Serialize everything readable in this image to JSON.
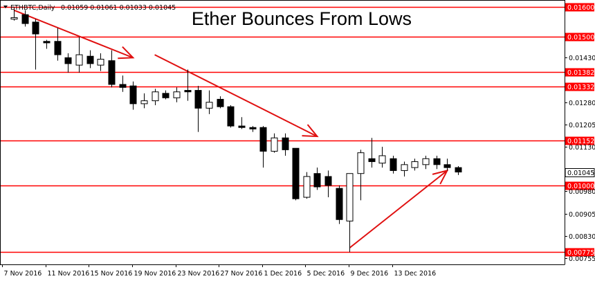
{
  "chart_data": {
    "type": "candlestick",
    "symbol_info": "ETHBTC,Daily",
    "ohlc_readout": "0.01059 0.01061 0.01033 0.01045",
    "title": "Ether Bounces From Lows",
    "colors": {
      "grid": "#ffffff",
      "level": "#ff0000",
      "arrow": "#e01010",
      "up": "#ffffff",
      "down": "#000000",
      "wick": "#000000"
    },
    "ylim": [
      0.00755,
      0.01615
    ],
    "y_ticks": [
      "0.01430",
      "0.01280",
      "0.01205",
      "0.01130",
      "0.00980",
      "0.00905",
      "0.00830",
      "0.00755"
    ],
    "x_tick_labels": [
      "7 Nov 2016",
      "11 Nov 2016",
      "15 Nov 2016",
      "19 Nov 2016",
      "23 Nov 2016",
      "27 Nov 2016",
      "1 Dec 2016",
      "5 Dec 2016",
      "9 Dec 2016",
      "13 Dec 2016"
    ],
    "levels": [
      "0.01600",
      "0.01500",
      "0.01382",
      "0.01332",
      "0.01152",
      "0.01000",
      "0.00775"
    ],
    "current_price": "0.01045",
    "candles": [
      {
        "o": 0.0156,
        "h": 0.016,
        "l": 0.01555,
        "c": 0.01565
      },
      {
        "o": 0.01575,
        "h": 0.0159,
        "l": 0.01535,
        "c": 0.01545
      },
      {
        "o": 0.0155,
        "h": 0.0156,
        "l": 0.0139,
        "c": 0.0151
      },
      {
        "o": 0.01485,
        "h": 0.0149,
        "l": 0.0146,
        "c": 0.0148
      },
      {
        "o": 0.01485,
        "h": 0.0153,
        "l": 0.0142,
        "c": 0.0144
      },
      {
        "o": 0.0143,
        "h": 0.01445,
        "l": 0.0138,
        "c": 0.0141
      },
      {
        "o": 0.01405,
        "h": 0.015,
        "l": 0.0138,
        "c": 0.0144
      },
      {
        "o": 0.01435,
        "h": 0.01455,
        "l": 0.01395,
        "c": 0.0141
      },
      {
        "o": 0.01405,
        "h": 0.01445,
        "l": 0.01385,
        "c": 0.01425
      },
      {
        "o": 0.0142,
        "h": 0.01455,
        "l": 0.0133,
        "c": 0.0134
      },
      {
        "o": 0.0134,
        "h": 0.0137,
        "l": 0.01315,
        "c": 0.0133
      },
      {
        "o": 0.01335,
        "h": 0.0135,
        "l": 0.01255,
        "c": 0.01275
      },
      {
        "o": 0.01275,
        "h": 0.0131,
        "l": 0.0126,
        "c": 0.01285
      },
      {
        "o": 0.01285,
        "h": 0.01325,
        "l": 0.0127,
        "c": 0.01315
      },
      {
        "o": 0.0131,
        "h": 0.0132,
        "l": 0.0129,
        "c": 0.01295
      },
      {
        "o": 0.01295,
        "h": 0.0133,
        "l": 0.0128,
        "c": 0.01315
      },
      {
        "o": 0.0132,
        "h": 0.0139,
        "l": 0.01285,
        "c": 0.01315
      },
      {
        "o": 0.0132,
        "h": 0.01335,
        "l": 0.0118,
        "c": 0.0126
      },
      {
        "o": 0.0126,
        "h": 0.0132,
        "l": 0.0124,
        "c": 0.0128
      },
      {
        "o": 0.0129,
        "h": 0.013,
        "l": 0.0126,
        "c": 0.01265
      },
      {
        "o": 0.01265,
        "h": 0.0127,
        "l": 0.01195,
        "c": 0.012
      },
      {
        "o": 0.012,
        "h": 0.0123,
        "l": 0.0119,
        "c": 0.01195
      },
      {
        "o": 0.01195,
        "h": 0.012,
        "l": 0.0118,
        "c": 0.0119
      },
      {
        "o": 0.01195,
        "h": 0.012,
        "l": 0.0106,
        "c": 0.01115
      },
      {
        "o": 0.01115,
        "h": 0.01175,
        "l": 0.0111,
        "c": 0.0116
      },
      {
        "o": 0.0116,
        "h": 0.01175,
        "l": 0.011,
        "c": 0.0112
      },
      {
        "o": 0.01125,
        "h": 0.01125,
        "l": 0.0095,
        "c": 0.00955
      },
      {
        "o": 0.0096,
        "h": 0.01045,
        "l": 0.00955,
        "c": 0.0103
      },
      {
        "o": 0.0104,
        "h": 0.0106,
        "l": 0.00985,
        "c": 0.00995
      },
      {
        "o": 0.0103,
        "h": 0.0105,
        "l": 0.0096,
        "c": 0.01
      },
      {
        "o": 0.0099,
        "h": 0.01,
        "l": 0.0087,
        "c": 0.00885
      },
      {
        "o": 0.0088,
        "h": 0.0104,
        "l": 0.00775,
        "c": 0.0104
      },
      {
        "o": 0.0104,
        "h": 0.0112,
        "l": 0.0095,
        "c": 0.0111
      },
      {
        "o": 0.0109,
        "h": 0.0116,
        "l": 0.0106,
        "c": 0.0108
      },
      {
        "o": 0.01075,
        "h": 0.0113,
        "l": 0.0106,
        "c": 0.011
      },
      {
        "o": 0.0109,
        "h": 0.011,
        "l": 0.0104,
        "c": 0.0105
      },
      {
        "o": 0.0105,
        "h": 0.0108,
        "l": 0.0103,
        "c": 0.0107
      },
      {
        "o": 0.0106,
        "h": 0.0109,
        "l": 0.0105,
        "c": 0.0108
      },
      {
        "o": 0.0107,
        "h": 0.011,
        "l": 0.01055,
        "c": 0.0109
      },
      {
        "o": 0.0109,
        "h": 0.011,
        "l": 0.01055,
        "c": 0.0107
      },
      {
        "o": 0.0107,
        "h": 0.0109,
        "l": 0.0105,
        "c": 0.0106
      },
      {
        "o": 0.0106,
        "h": 0.01065,
        "l": 0.01035,
        "c": 0.01045
      }
    ],
    "trend_arrows": [
      {
        "from": {
          "candle": 0,
          "price": 0.0159
        },
        "to": {
          "candle": 11,
          "price": 0.0143
        }
      },
      {
        "from": {
          "candle": 13,
          "price": 0.0144
        },
        "to": {
          "candle": 28,
          "price": 0.01165
        }
      },
      {
        "from": {
          "candle": 31,
          "price": 0.0079
        },
        "to": {
          "candle": 40,
          "price": 0.0105
        }
      }
    ]
  }
}
